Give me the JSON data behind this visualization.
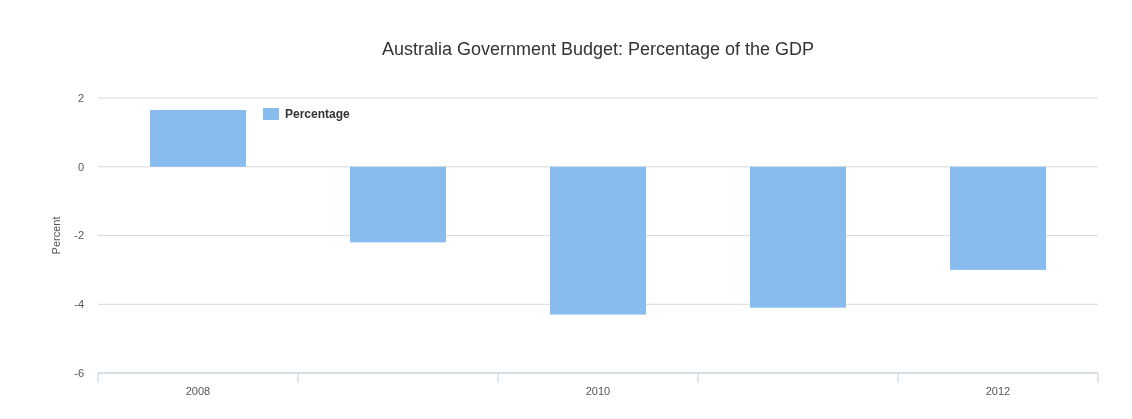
{
  "chart_data": {
    "type": "bar",
    "title": "Australia Government Budget: Percentage of the GDP",
    "ylabel": "Percent",
    "categories": [
      "2008",
      null,
      "2010",
      null,
      "2012"
    ],
    "series": [
      {
        "name": "Percentage",
        "color": "#88bbee",
        "values": [
          1.65,
          -2.2,
          -4.3,
          -4.1,
          -3.0
        ]
      }
    ],
    "ylim": [
      -6,
      2
    ],
    "yticks": [
      -6,
      -4,
      -2,
      0,
      2
    ],
    "grid": "y",
    "legend": "top left"
  }
}
